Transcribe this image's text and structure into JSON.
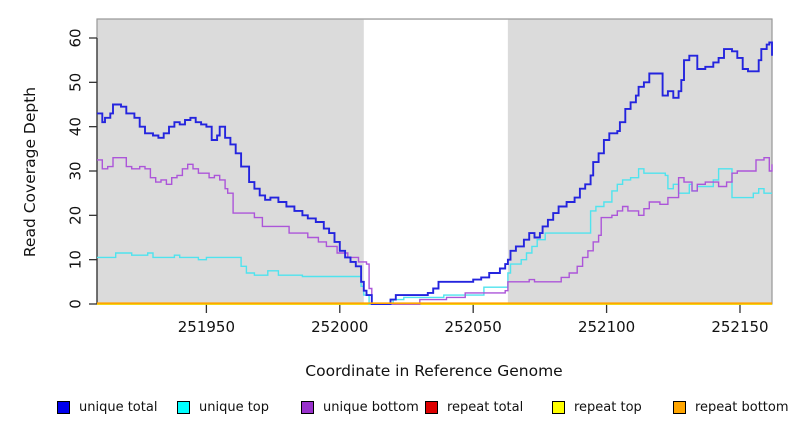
{
  "chart_data": {
    "type": "line",
    "subtype": "step-coverage",
    "title": "",
    "xlabel": "Coordinate in Reference Genome",
    "ylabel": "Read Coverage Depth",
    "xlim": [
      251909,
      252162
    ],
    "ylim": [
      0,
      60
    ],
    "x_ticks": [
      {
        "value": 251950,
        "label": "251950"
      },
      {
        "value": 252000,
        "label": "252000"
      },
      {
        "value": 252050,
        "label": "252050"
      },
      {
        "value": 252100,
        "label": "252100"
      },
      {
        "value": 252150,
        "label": "252150"
      }
    ],
    "y_ticks": [
      {
        "value": 0,
        "label": "0"
      },
      {
        "value": 10,
        "label": "10"
      },
      {
        "value": 20,
        "label": "20"
      },
      {
        "value": 30,
        "label": "30"
      },
      {
        "value": 40,
        "label": "40"
      },
      {
        "value": 50,
        "label": "50"
      },
      {
        "value": 60,
        "label": "60"
      }
    ],
    "plot_background": "#DBDBDB",
    "plot_border_color": "#979797",
    "axis_color": "#333333",
    "masked_region": {
      "x0": 252009,
      "x1": 252063,
      "color": "#FFFFFF"
    },
    "legend_position": "bottom",
    "grid": false,
    "draw_order": [
      3,
      4,
      1,
      2,
      0,
      5
    ],
    "series": [
      {
        "name": "unique total",
        "color": "#2424DE",
        "legend_color": "#0000EE",
        "width": 1.9,
        "points": [
          [
            251909,
            43
          ],
          [
            251911,
            41
          ],
          [
            251912,
            42
          ],
          [
            251914,
            43
          ],
          [
            251915,
            45
          ],
          [
            251918,
            44.5
          ],
          [
            251920,
            43
          ],
          [
            251923,
            42
          ],
          [
            251925,
            40
          ],
          [
            251927,
            38.5
          ],
          [
            251930,
            38
          ],
          [
            251932,
            37.5
          ],
          [
            251934,
            38.5
          ],
          [
            251936,
            40
          ],
          [
            251938,
            41
          ],
          [
            251940,
            40.5
          ],
          [
            251942,
            41.5
          ],
          [
            251944,
            42
          ],
          [
            251946,
            41
          ],
          [
            251948,
            40.5
          ],
          [
            251950,
            40
          ],
          [
            251952,
            37
          ],
          [
            251954,
            38
          ],
          [
            251955,
            40
          ],
          [
            251957,
            37.5
          ],
          [
            251959,
            36
          ],
          [
            251961,
            34
          ],
          [
            251963,
            31
          ],
          [
            251966,
            27.5
          ],
          [
            251968,
            26
          ],
          [
            251970,
            24.5
          ],
          [
            251972,
            23.5
          ],
          [
            251974,
            24
          ],
          [
            251977,
            23
          ],
          [
            251980,
            22
          ],
          [
            251983,
            21
          ],
          [
            251986,
            20
          ],
          [
            251988,
            19.3
          ],
          [
            251991,
            18.5
          ],
          [
            251994,
            17
          ],
          [
            251996,
            16
          ],
          [
            251998,
            14
          ],
          [
            252000,
            12
          ],
          [
            252002,
            10.5
          ],
          [
            252004,
            9.5
          ],
          [
            252006,
            8.5
          ],
          [
            252008,
            5
          ],
          [
            252009,
            3
          ],
          [
            252010,
            2
          ],
          [
            252012,
            0
          ],
          [
            252018,
            0
          ],
          [
            252019,
            1
          ],
          [
            252021,
            2
          ],
          [
            252033,
            2.5
          ],
          [
            252035,
            3.5
          ],
          [
            252037,
            5
          ],
          [
            252050,
            5.5
          ],
          [
            252053,
            6
          ],
          [
            252056,
            7
          ],
          [
            252060,
            8
          ],
          [
            252062,
            9
          ],
          [
            252063,
            10
          ],
          [
            252064,
            12
          ],
          [
            252066,
            13
          ],
          [
            252069,
            14.5
          ],
          [
            252071,
            16
          ],
          [
            252073,
            15
          ],
          [
            252075,
            16
          ],
          [
            252076,
            17.5
          ],
          [
            252078,
            19
          ],
          [
            252080,
            20.5
          ],
          [
            252082,
            22
          ],
          [
            252085,
            23
          ],
          [
            252088,
            24
          ],
          [
            252090,
            26
          ],
          [
            252092,
            27
          ],
          [
            252094,
            29
          ],
          [
            252095,
            32
          ],
          [
            252097,
            34
          ],
          [
            252099,
            37
          ],
          [
            252101,
            38.5
          ],
          [
            252104,
            39
          ],
          [
            252105,
            41
          ],
          [
            252107,
            44
          ],
          [
            252109,
            45.5
          ],
          [
            252111,
            47
          ],
          [
            252112,
            49
          ],
          [
            252114,
            50
          ],
          [
            252116,
            52
          ],
          [
            252120,
            52
          ],
          [
            252121,
            47
          ],
          [
            252123,
            48
          ],
          [
            252125,
            46.5
          ],
          [
            252127,
            48
          ],
          [
            252128,
            50.5
          ],
          [
            252129,
            55
          ],
          [
            252131,
            56
          ],
          [
            252134,
            53
          ],
          [
            252137,
            53.5
          ],
          [
            252140,
            54.5
          ],
          [
            252142,
            55.5
          ],
          [
            252144,
            57.5
          ],
          [
            252147,
            57
          ],
          [
            252149,
            55.5
          ],
          [
            252151,
            53
          ],
          [
            252153,
            52.5
          ],
          [
            252156,
            52.5
          ],
          [
            252157,
            55
          ],
          [
            252158,
            57.5
          ],
          [
            252160,
            58.5
          ],
          [
            252161,
            59
          ],
          [
            252162,
            56
          ]
        ]
      },
      {
        "name": "unique top",
        "color": "#4FE3EE",
        "legend_color": "#00FFFF",
        "width": 1.4,
        "points": [
          [
            251909,
            10.5
          ],
          [
            251915,
            10.5
          ],
          [
            251916,
            11.5
          ],
          [
            251922,
            11
          ],
          [
            251928,
            11.5
          ],
          [
            251930,
            10.5
          ],
          [
            251936,
            10.5
          ],
          [
            251938,
            11
          ],
          [
            251940,
            10.5
          ],
          [
            251947,
            10
          ],
          [
            251950,
            10.5
          ],
          [
            251962,
            10.5
          ],
          [
            251963,
            8.5
          ],
          [
            251965,
            7
          ],
          [
            251968,
            6.5
          ],
          [
            251973,
            7.5
          ],
          [
            251977,
            6.5
          ],
          [
            251986,
            6.2
          ],
          [
            252006,
            6.2
          ],
          [
            252008,
            4
          ],
          [
            252009,
            2
          ],
          [
            252011,
            0
          ],
          [
            252018,
            0
          ],
          [
            252020,
            1
          ],
          [
            252024,
            1.5
          ],
          [
            252037,
            1.5
          ],
          [
            252039,
            2
          ],
          [
            252052,
            2
          ],
          [
            252054,
            3.8
          ],
          [
            252062,
            3.8
          ],
          [
            252063,
            7
          ],
          [
            252064,
            9
          ],
          [
            252068,
            10
          ],
          [
            252070,
            11.5
          ],
          [
            252072,
            13
          ],
          [
            252074,
            14.5
          ],
          [
            252077,
            16
          ],
          [
            252093,
            16
          ],
          [
            252094,
            21
          ],
          [
            252096,
            22
          ],
          [
            252099,
            23
          ],
          [
            252102,
            25.5
          ],
          [
            252104,
            27
          ],
          [
            252106,
            28
          ],
          [
            252109,
            28.5
          ],
          [
            252112,
            30.5
          ],
          [
            252114,
            29.5
          ],
          [
            252122,
            29
          ],
          [
            252123,
            26
          ],
          [
            252125,
            27
          ],
          [
            252127,
            25
          ],
          [
            252130,
            25
          ],
          [
            252131,
            27
          ],
          [
            252132,
            25.5
          ],
          [
            252134,
            26.5
          ],
          [
            252139,
            26.5
          ],
          [
            252140,
            28
          ],
          [
            252142,
            30.5
          ],
          [
            252146,
            30.5
          ],
          [
            252147,
            24
          ],
          [
            252153,
            24
          ],
          [
            252155,
            25
          ],
          [
            252157,
            26
          ],
          [
            252159,
            25
          ],
          [
            252162,
            25
          ]
        ]
      },
      {
        "name": "unique bottom",
        "color": "#AC55D9",
        "legend_color": "#9932CC",
        "width": 1.4,
        "points": [
          [
            251909,
            32.5
          ],
          [
            251911,
            30.5
          ],
          [
            251913,
            31
          ],
          [
            251915,
            33
          ],
          [
            251918,
            33
          ],
          [
            251920,
            31
          ],
          [
            251922,
            30.5
          ],
          [
            251925,
            31
          ],
          [
            251927,
            30.5
          ],
          [
            251929,
            28.5
          ],
          [
            251931,
            27.5
          ],
          [
            251933,
            28
          ],
          [
            251935,
            27
          ],
          [
            251937,
            28.5
          ],
          [
            251939,
            29
          ],
          [
            251941,
            30.5
          ],
          [
            251943,
            31.5
          ],
          [
            251945,
            30.5
          ],
          [
            251947,
            29.5
          ],
          [
            251951,
            28.5
          ],
          [
            251953,
            29
          ],
          [
            251955,
            28
          ],
          [
            251957,
            26
          ],
          [
            251958,
            25
          ],
          [
            251960,
            20.5
          ],
          [
            251968,
            19.5
          ],
          [
            251971,
            17.5
          ],
          [
            251981,
            16
          ],
          [
            251988,
            15
          ],
          [
            251992,
            14
          ],
          [
            251995,
            13
          ],
          [
            251999,
            11.5
          ],
          [
            252003,
            10.5
          ],
          [
            252007,
            9.5
          ],
          [
            252010,
            9
          ],
          [
            252011,
            3.5
          ],
          [
            252012,
            0
          ],
          [
            252029,
            0
          ],
          [
            252030,
            1
          ],
          [
            252040,
            1.5
          ],
          [
            252047,
            2.5
          ],
          [
            252062,
            3
          ],
          [
            252063,
            5
          ],
          [
            252069,
            5
          ],
          [
            252071,
            5.5
          ],
          [
            252073,
            5
          ],
          [
            252081,
            5
          ],
          [
            252083,
            6
          ],
          [
            252086,
            7
          ],
          [
            252089,
            8.5
          ],
          [
            252091,
            10.5
          ],
          [
            252093,
            12
          ],
          [
            252095,
            14
          ],
          [
            252097,
            15.5
          ],
          [
            252098,
            19.5
          ],
          [
            252102,
            20
          ],
          [
            252104,
            21
          ],
          [
            252106,
            22
          ],
          [
            252108,
            21
          ],
          [
            252112,
            20
          ],
          [
            252114,
            21.5
          ],
          [
            252116,
            23
          ],
          [
            252120,
            22.5
          ],
          [
            252123,
            24
          ],
          [
            252127,
            28.5
          ],
          [
            252129,
            27.5
          ],
          [
            252132,
            25.5
          ],
          [
            252134,
            27
          ],
          [
            252137,
            27.5
          ],
          [
            252142,
            26.5
          ],
          [
            252145,
            27.5
          ],
          [
            252147,
            29.5
          ],
          [
            252149,
            30
          ],
          [
            252154,
            30
          ],
          [
            252156,
            32.5
          ],
          [
            252159,
            33
          ],
          [
            252161,
            30
          ],
          [
            252162,
            31.5
          ]
        ]
      },
      {
        "name": "repeat total",
        "color": "#DD0000",
        "legend_color": "#DD0000",
        "width": 1.5,
        "points": [
          [
            251909,
            0
          ],
          [
            252162,
            0
          ]
        ]
      },
      {
        "name": "repeat top",
        "color": "#FFFF00",
        "legend_color": "#FFFF00",
        "width": 1.5,
        "points": [
          [
            251909,
            0
          ],
          [
            252162,
            0
          ]
        ]
      },
      {
        "name": "repeat bottom",
        "color": "#FFA500",
        "legend_color": "#FFA500",
        "width": 1.6,
        "points": [
          [
            251909,
            0
          ],
          [
            252162,
            0
          ]
        ]
      }
    ]
  },
  "legend_layout_x": [
    57,
    177,
    301,
    425,
    552,
    673
  ]
}
